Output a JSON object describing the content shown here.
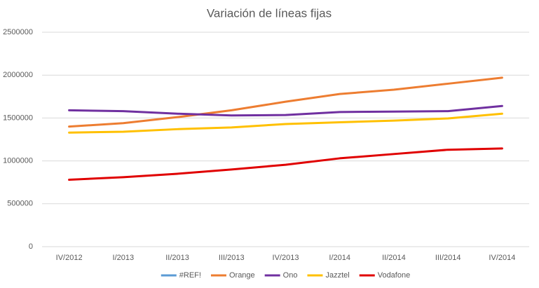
{
  "chart_data": {
    "type": "line",
    "title": "Variación de líneas fijas",
    "categories": [
      "IV/2012",
      "I/2013",
      "II/2013",
      "III/2013",
      "IV/2013",
      "I/2014",
      "II/2014",
      "III/2014",
      "IV/2014"
    ],
    "series": [
      {
        "name": "#REF!",
        "color": "#5b9bd5",
        "values": [
          null,
          null,
          null,
          null,
          null,
          null,
          null,
          null,
          null
        ]
      },
      {
        "name": "Orange",
        "color": "#ed7d31",
        "values": [
          1400000,
          1440000,
          1510000,
          1590000,
          1690000,
          1780000,
          1830000,
          1900000,
          1970000
        ]
      },
      {
        "name": "Ono",
        "color": "#7030a0",
        "values": [
          1590000,
          1580000,
          1550000,
          1530000,
          1535000,
          1570000,
          1575000,
          1580000,
          1640000
        ]
      },
      {
        "name": "Jazztel",
        "color": "#ffc000",
        "values": [
          1330000,
          1340000,
          1370000,
          1390000,
          1430000,
          1450000,
          1470000,
          1495000,
          1550000
        ]
      },
      {
        "name": "Vodafone",
        "color": "#e00000",
        "values": [
          780000,
          810000,
          850000,
          900000,
          955000,
          1030000,
          1080000,
          1130000,
          1145000
        ]
      }
    ],
    "ylim": [
      0,
      2500000
    ],
    "yticks": [
      0,
      500000,
      1000000,
      1500000,
      2000000,
      2500000
    ],
    "grid": true,
    "legend": "bottom"
  }
}
